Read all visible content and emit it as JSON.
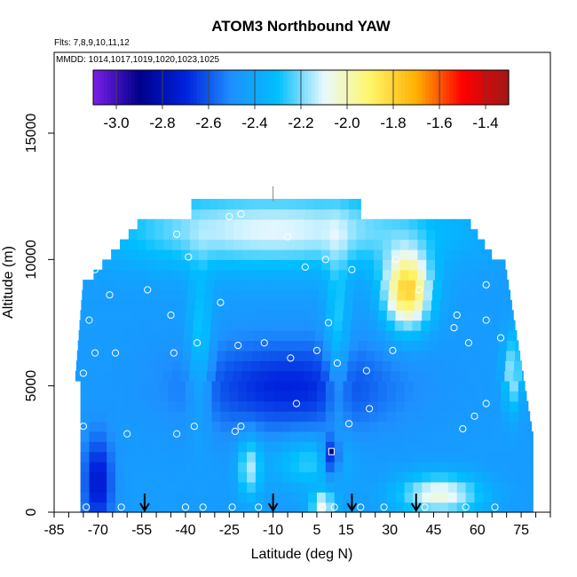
{
  "chart_data": {
    "type": "heatmap",
    "title": "ATOM3 Northbound YAW",
    "flights_text": "Flts: 7,8,9,10,11,12",
    "mmdd_text": "MMDD: 1014,1017,1019,1020,1023,1025",
    "xlabel": "Latitude (deg N)",
    "ylabel": "Altitude (m)",
    "xlim": [
      -85,
      85
    ],
    "ylim": [
      0,
      17500
    ],
    "x_ticks": [
      -85,
      -70,
      -55,
      -40,
      -25,
      -10,
      5,
      15,
      30,
      45,
      60,
      75
    ],
    "x_minor_step": 5,
    "y_ticks": [
      0,
      5000,
      10000,
      15000
    ],
    "colorbar": {
      "ticks": [
        -3.0,
        -2.8,
        -2.6,
        -2.4,
        -2.2,
        -2.0,
        -1.8,
        -1.6,
        -1.4
      ],
      "tick_labels": [
        "-3.0",
        "-2.8",
        "-2.6",
        "-2.4",
        "-2.2",
        "-2.0",
        "-1.8",
        "-1.6",
        "-1.4"
      ],
      "range": [
        -3.1,
        -1.3
      ],
      "colors": [
        "#7b1fe8",
        "#00008b",
        "#0022dd",
        "#1e90ff",
        "#00bfff",
        "#e8f8ff",
        "#fff66a",
        "#ffb000",
        "#ff0000",
        "#a01818"
      ]
    },
    "arrows_lat": [
      -54,
      -10,
      17,
      39
    ]
  }
}
